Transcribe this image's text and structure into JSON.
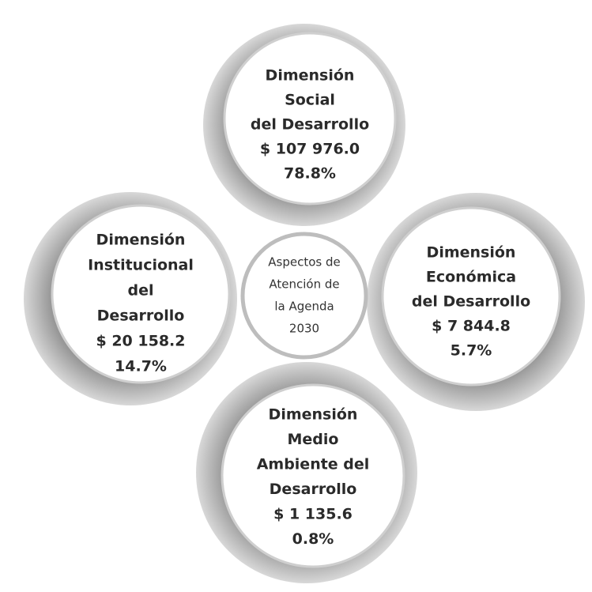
{
  "center": {
    "lines": [
      "Aspectos de",
      "Atención de",
      "la Agenda",
      "2030"
    ]
  },
  "nodes": [
    {
      "lines": [
        "Dimensión",
        "Social",
        "del Desarrollo"
      ],
      "amount": "$ 107 976.0",
      "percent": "78.8%"
    },
    {
      "lines": [
        "Dimensión",
        "Institucional",
        "del",
        "Desarrollo"
      ],
      "amount": "$ 20 158.2",
      "percent": "14.7%"
    },
    {
      "lines": [
        "Dimensión",
        "Económica",
        "del Desarrollo"
      ],
      "amount": "$ 7 844.8",
      "percent": "5.7%"
    },
    {
      "lines": [
        "Dimensión",
        "Medio",
        "Ambiente del",
        "Desarrollo"
      ],
      "amount": "$ 1 135.6",
      "percent": "0.8%"
    }
  ]
}
